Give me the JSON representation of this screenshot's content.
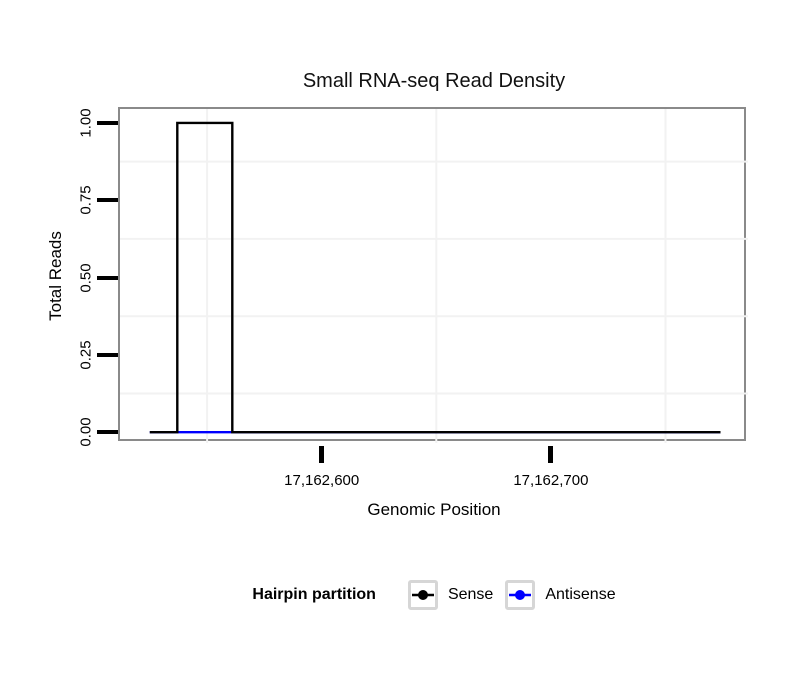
{
  "page": {
    "background": "#ffffff"
  },
  "chart_data": {
    "type": "line",
    "title": "Small RNA-seq Read Density",
    "xlabel": "Genomic Position",
    "ylabel": "Total Reads",
    "x_domain": [
      17162512,
      17162786
    ],
    "y_domain": [
      -0.035,
      1.045
    ],
    "x_ticks": [
      {
        "value": 17162600,
        "label": "17,162,600"
      },
      {
        "value": 17162700,
        "label": "17,162,700"
      }
    ],
    "y_ticks": [
      {
        "value": 0.0,
        "label": "0.00"
      },
      {
        "value": 0.25,
        "label": "0.25"
      },
      {
        "value": 0.5,
        "label": "0.50"
      },
      {
        "value": 0.75,
        "label": "0.75"
      },
      {
        "value": 1.0,
        "label": "1.00"
      }
    ],
    "grid": {
      "minor_x": [
        17162550,
        17162650,
        17162750
      ],
      "minor_y": [
        0.125,
        0.375,
        0.625,
        0.875
      ],
      "minor_color": "#f2f2f2",
      "minor_width": 2
    },
    "series": [
      {
        "name": "Antisense",
        "color": "#0000ff",
        "width": 2.4,
        "points": [
          [
            17162525,
            0
          ],
          [
            17162774,
            0
          ]
        ]
      },
      {
        "name": "Sense",
        "color": "#000000",
        "width": 2.4,
        "points": [
          [
            17162525,
            0
          ],
          [
            17162537,
            0
          ],
          [
            17162537,
            1
          ],
          [
            17162561,
            1
          ],
          [
            17162561,
            0
          ],
          [
            17162774,
            0
          ]
        ]
      }
    ],
    "legend": {
      "title": "Hairpin partition",
      "position": "bottom",
      "entries": [
        {
          "label": "Sense",
          "color": "#000000"
        },
        {
          "label": "Antisense",
          "color": "#0000ff"
        }
      ]
    },
    "panel": {
      "border_color": "#8a8a8a",
      "background": "#ffffff",
      "tick_color": "#000000"
    }
  }
}
